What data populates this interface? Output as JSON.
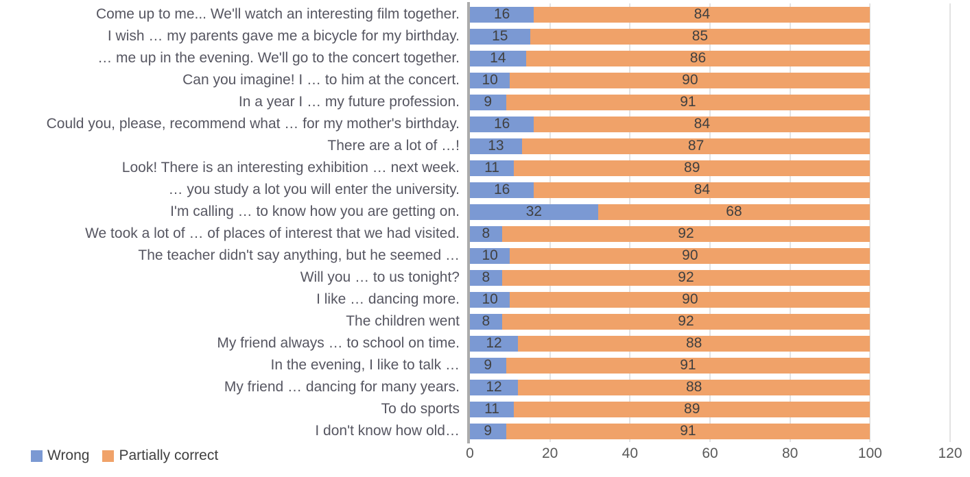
{
  "chart_data": {
    "type": "bar",
    "orientation": "horizontal",
    "stacked": true,
    "title": "",
    "xlabel": "",
    "ylabel": "",
    "xlim": [
      0,
      120
    ],
    "x_ticks": [
      0,
      20,
      40,
      60,
      80,
      100,
      120
    ],
    "grid": "vertical",
    "legend_position": "bottom-left",
    "categories": [
      "Come up to me... We'll watch an interesting film together.",
      "I wish … my parents gave me a bicycle for my birthday.",
      "… me up in the evening. We'll go to the concert together.",
      "Can you imagine! I … to him at the concert.",
      "In a year I … my future profession.",
      "Could you, please, recommend what … for my mother's birthday.",
      "There are a lot of …!",
      "Look! There is an interesting exhibition … next week.",
      "… you study a lot you will enter the university.",
      "I'm calling … to know how you are getting on.",
      "We took a lot of … of places of interest that we had visited.",
      "The teacher didn't say anything, but he seemed …",
      "Will you … to us tonight?",
      "I like … dancing more.",
      "The children went",
      "My friend always … to school on time.",
      "In the evening, I like to talk …",
      "My friend … dancing for many years.",
      "To do sports",
      "I don't know how old…"
    ],
    "series": [
      {
        "name": "Wrong",
        "color": "#7b99d3",
        "values": [
          16,
          15,
          14,
          10,
          9,
          16,
          13,
          11,
          16,
          32,
          8,
          10,
          8,
          10,
          8,
          12,
          9,
          12,
          11,
          9
        ]
      },
      {
        "name": "Partially correct",
        "color": "#f0a269",
        "values": [
          84,
          85,
          86,
          90,
          91,
          84,
          87,
          89,
          84,
          68,
          92,
          90,
          92,
          90,
          92,
          88,
          91,
          88,
          89,
          91
        ]
      }
    ],
    "style": {
      "gridline_color": "#e2e2e2",
      "axis_line_color": "#ababab",
      "category_label_color": "#565661",
      "data_label_color": "#404040",
      "tick_label_color": "#595959"
    }
  },
  "legend": {
    "items": [
      {
        "label": "Wrong",
        "color": "#7b99d3"
      },
      {
        "label": "Partially correct",
        "color": "#f0a269"
      }
    ]
  }
}
